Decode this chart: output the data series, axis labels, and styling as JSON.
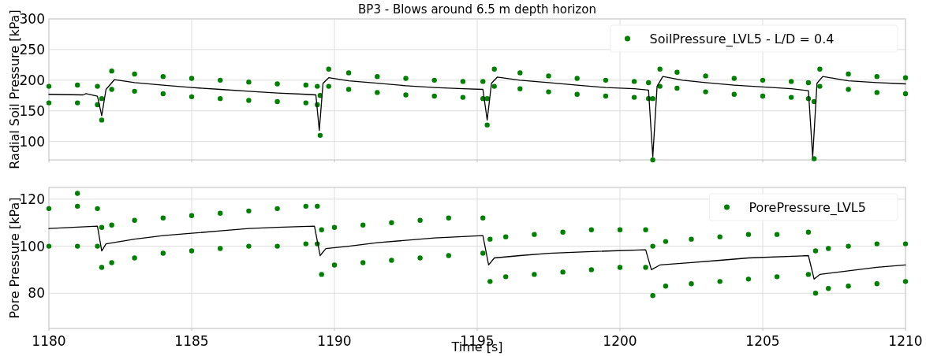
{
  "chart_data": [
    {
      "type": "scatter",
      "title": "BP3 - Blows around 6.5 m depth horizon",
      "ylabel": "Radial Soil Pressure [kPa]",
      "xlim": [
        1180,
        1210
      ],
      "xticks": [
        {
          "value": 1180,
          "label": null
        },
        {
          "value": 1185,
          "label": null
        },
        {
          "value": 1190,
          "label": null
        },
        {
          "value": 1195,
          "label": null
        },
        {
          "value": 1200,
          "label": null
        },
        {
          "value": 1205,
          "label": null
        },
        {
          "value": 1210,
          "label": null
        }
      ],
      "ylim": [
        70,
        300
      ],
      "yticks": [
        100,
        150,
        200,
        250,
        300
      ],
      "tick_labels": "y",
      "grid": true,
      "legend": "top right",
      "series": [
        {
          "name": "SoilPressure_LVL5 - L/D = 0.4",
          "marker": "circle",
          "color": "#008000",
          "x": [
            1180,
            1180,
            1181,
            1181,
            1181.7,
            1181.7,
            1181.85,
            1181.85,
            1182.2,
            1182.2,
            1183,
            1183,
            1184,
            1184,
            1185,
            1185,
            1186,
            1186,
            1187,
            1187,
            1188,
            1188,
            1189,
            1189,
            1189.4,
            1189.4,
            1189.5,
            1189.5,
            1189.8,
            1189.8,
            1190.5,
            1190.5,
            1191.5,
            1191.5,
            1192.5,
            1192.5,
            1193.5,
            1193.5,
            1194.5,
            1194.5,
            1195.2,
            1195.2,
            1195.35,
            1195.35,
            1195.6,
            1195.6,
            1196.5,
            1196.5,
            1197.5,
            1197.5,
            1198.5,
            1198.5,
            1199.5,
            1199.5,
            1200.5,
            1200.5,
            1201,
            1201,
            1201.15,
            1201.15,
            1201.4,
            1201.4,
            1202,
            1202,
            1203,
            1203,
            1204,
            1204,
            1205,
            1205,
            1206,
            1206,
            1206.6,
            1206.6,
            1206.8,
            1206.8,
            1207,
            1207,
            1208,
            1208,
            1209,
            1209,
            1210,
            1210
          ],
          "values": [
            190,
            163,
            192,
            163,
            190,
            160,
            170,
            135,
            215,
            185,
            210,
            182,
            206,
            178,
            203,
            173,
            200,
            170,
            197,
            167,
            194,
            165,
            192,
            163,
            190,
            160,
            175,
            110,
            218,
            190,
            212,
            185,
            206,
            180,
            203,
            176,
            200,
            174,
            198,
            172,
            198,
            170,
            170,
            127,
            218,
            190,
            212,
            186,
            207,
            181,
            203,
            177,
            200,
            174,
            198,
            172,
            196,
            170,
            170,
            70,
            218,
            190,
            213,
            187,
            207,
            181,
            203,
            177,
            200,
            174,
            198,
            172,
            196,
            170,
            165,
            72,
            218,
            190,
            210,
            185,
            206,
            180,
            204,
            178
          ]
        },
        {
          "type": "line",
          "color": "#000000",
          "x": [
            1180,
            1181.2,
            1181.3,
            1181.7,
            1181.85,
            1182,
            1182.3,
            1183,
            1184,
            1185,
            1186,
            1187,
            1188,
            1189,
            1189.35,
            1189.47,
            1189.6,
            1189.8,
            1190.5,
            1191.5,
            1192.5,
            1193.5,
            1194.5,
            1195.2,
            1195.35,
            1195.5,
            1195.7,
            1196.5,
            1197.5,
            1198.5,
            1199.5,
            1200.5,
            1201,
            1201.15,
            1201.3,
            1201.5,
            1202.2,
            1203,
            1204,
            1205,
            1206,
            1206.6,
            1206.75,
            1206.9,
            1207.1,
            1208,
            1209,
            1210
          ],
          "values": [
            177,
            176,
            178,
            174,
            142,
            185,
            201,
            196,
            192,
            188,
            185,
            182,
            179,
            177,
            176,
            118,
            195,
            204,
            199,
            195,
            191,
            188,
            186,
            185,
            135,
            195,
            205,
            200,
            196,
            192,
            188,
            186,
            184,
            75,
            190,
            206,
            200,
            196,
            192,
            189,
            186,
            183,
            75,
            195,
            206,
            199,
            196,
            194
          ]
        }
      ]
    },
    {
      "type": "scatter",
      "xlabel": "Time [s]",
      "ylabel": "Pore Pressure [kPa]",
      "xlim": [
        1180,
        1210
      ],
      "xticks": [
        1180,
        1185,
        1190,
        1195,
        1200,
        1205,
        1210
      ],
      "ylim": [
        65,
        125
      ],
      "yticks": [
        80,
        100,
        120
      ],
      "grid": true,
      "legend": "top right",
      "series": [
        {
          "name": "PorePressure_LVL5",
          "marker": "circle",
          "color": "#008000",
          "x": [
            1180,
            1180,
            1181,
            1181,
            1181,
            1181.7,
            1181.7,
            1181.85,
            1181.85,
            1182.2,
            1182.2,
            1183,
            1183,
            1184,
            1184,
            1185,
            1185,
            1186,
            1186,
            1187,
            1187,
            1188,
            1188,
            1189,
            1189,
            1189.4,
            1189.4,
            1189.55,
            1189.55,
            1190,
            1190,
            1191,
            1191,
            1192,
            1192,
            1193,
            1193,
            1194,
            1194,
            1195.2,
            1195.2,
            1195.45,
            1195.45,
            1196,
            1196,
            1197,
            1197,
            1198,
            1198,
            1199,
            1199,
            1200,
            1200,
            1200.9,
            1200.9,
            1201.15,
            1201.15,
            1201.6,
            1201.6,
            1202.5,
            1202.5,
            1203.5,
            1203.5,
            1204.5,
            1204.5,
            1205.5,
            1205.5,
            1206.6,
            1206.6,
            1206.85,
            1206.85,
            1207.3,
            1207.3,
            1208,
            1208,
            1209,
            1209,
            1210,
            1210
          ],
          "values": [
            116,
            100,
            117,
            100,
            122.5,
            116,
            100,
            108,
            91,
            109,
            93,
            111,
            95,
            112,
            97,
            113,
            98,
            114,
            99,
            115,
            100,
            116,
            100,
            117,
            101,
            117,
            101,
            107,
            88,
            108,
            92,
            109,
            93,
            110,
            94,
            111,
            95,
            112,
            96,
            112,
            97,
            103,
            85,
            104,
            87,
            105,
            88,
            106,
            89,
            107,
            90,
            107,
            91,
            107,
            91,
            100,
            79,
            102,
            83,
            103,
            84,
            104,
            85,
            105,
            86,
            105,
            87,
            106,
            88,
            98,
            80,
            99,
            82,
            100,
            83,
            101,
            84,
            101,
            85
          ]
        },
        {
          "type": "line",
          "color": "#000000",
          "x": [
            1180,
            1181.7,
            1181.85,
            1182,
            1183,
            1184,
            1185,
            1186,
            1187,
            1188,
            1189.3,
            1189.5,
            1189.7,
            1190.5,
            1191.5,
            1192.5,
            1193.5,
            1195.2,
            1195.4,
            1195.6,
            1196.5,
            1197.5,
            1198.5,
            1200.9,
            1201.1,
            1201.4,
            1202.5,
            1203.5,
            1204.5,
            1206.6,
            1206.8,
            1207,
            1208,
            1209,
            1210
          ],
          "values": [
            107.5,
            108.5,
            98,
            101,
            103,
            104.5,
            105.5,
            106.5,
            107.5,
            108,
            108.5,
            96,
            99,
            100,
            101.5,
            102.5,
            103.5,
            104.5,
            92,
            95,
            96,
            97,
            97.5,
            98.5,
            90,
            92,
            93,
            94,
            95,
            96,
            86,
            88,
            89.5,
            91,
            92
          ]
        }
      ]
    }
  ]
}
